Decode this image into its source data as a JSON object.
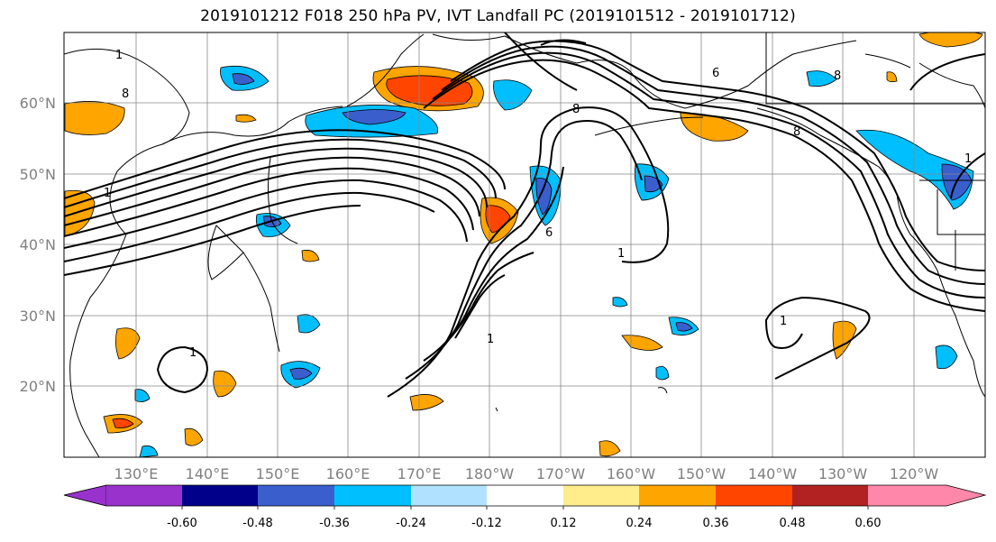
{
  "title": "2019101212 F018 250 hPa PV, IVT Landfall PC (2019101512 - 2019101712)",
  "lat_labels": [
    "60°N",
    "50°N",
    "40°N",
    "30°N",
    "20°N"
  ],
  "lon_labels": [
    "130°E",
    "140°E",
    "150°E",
    "160°E",
    "170°E",
    "180°W",
    "170°W",
    "160°W",
    "150°W",
    "140°W",
    "130°W",
    "120°W"
  ],
  "colorbar": {
    "colors": [
      "#9932cc",
      "#00008b",
      "#3a5fcd",
      "#00bfff",
      "#b0e2ff",
      "#ffffff",
      "#ffec8b",
      "#ffa500",
      "#ff4500",
      "#b22222",
      "#ff88aa"
    ],
    "tick_labels": [
      "-0.60",
      "-0.48",
      "-0.36",
      "-0.24",
      "-0.12",
      "0.12",
      "0.24",
      "0.36",
      "0.48",
      "0.60"
    ]
  },
  "contour_labels": [
    "1",
    "8",
    "1",
    "6",
    "8",
    "6",
    "1",
    "1",
    "8",
    "1",
    "1",
    "8",
    "1"
  ]
}
